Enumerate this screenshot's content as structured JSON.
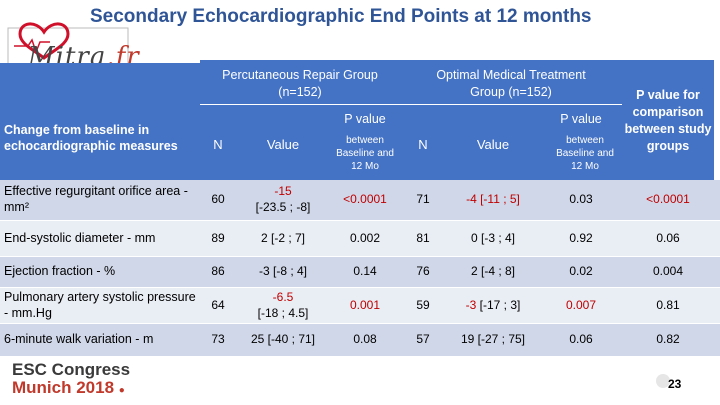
{
  "title": "Secondary Echocardiographic End Points at 12 months",
  "logo": {
    "text_main": "Mitra",
    "text_tld": ".fr"
  },
  "header": {
    "row_label": "Change from baseline in echocardiographic measures",
    "group1": {
      "name": "Percutaneous Repair Group",
      "n": "(n=152)"
    },
    "group2": {
      "name": "Optimal Medical Treatment",
      "n": "Group (n=152)"
    },
    "comparison": "P value for comparison between study groups",
    "col_n": "N",
    "col_value": "Value",
    "p_value": "P value",
    "p_between": "between Baseline and 12 Mo"
  },
  "rows": [
    {
      "label": "Effective regurgitant orifice area - mm²",
      "n1": "60",
      "v1": "-15",
      "v1b": "[-23.5 ; -8]",
      "p1": "<0.0001",
      "n2": "71",
      "v2": "-4 [-11 ; 5]",
      "p2": "0.03",
      "pc": "<0.0001"
    },
    {
      "label": "End-systolic diameter - mm",
      "n1": "89",
      "v1": "2 [-2 ; 7]",
      "p1": "0.002",
      "n2": "81",
      "v2": "0 [-3 ; 4]",
      "p2": "0.92",
      "pc": "0.06"
    },
    {
      "label": "Ejection fraction - %",
      "n1": "86",
      "v1": "-3 [-8 ; 4]",
      "p1": "0.14",
      "n2": "76",
      "v2": "2 [-4 ; 8]",
      "p2": "0.02",
      "pc": "0.004"
    },
    {
      "label": "Pulmonary artery systolic pressure - mm.Hg",
      "n1": "64",
      "v1": "-6.5",
      "v1b": "[-18 ; 4.5]",
      "p1": "0.001",
      "n2": "59",
      "v2": "-3",
      "v2b": "[-17 ; 3]",
      "p2": "0.007",
      "pc": "0.81"
    },
    {
      "label": "6-minute walk variation - m",
      "n1": "73",
      "v1": "25 [-40 ; 71]",
      "p1": "0.08",
      "n2": "57",
      "v2": "19 [-27 ; 75]",
      "p2": "0.06",
      "pc": "0.82"
    }
  ],
  "footer": {
    "line1": "ESC Congress",
    "line2": "Munich 2018",
    "page": "23"
  },
  "colors": {
    "header_blue": "#4472c4",
    "title_blue": "#2f5597",
    "row_dark": "#d0d7e8",
    "row_light": "#e9edf4",
    "highlight_red": "#c00000"
  }
}
